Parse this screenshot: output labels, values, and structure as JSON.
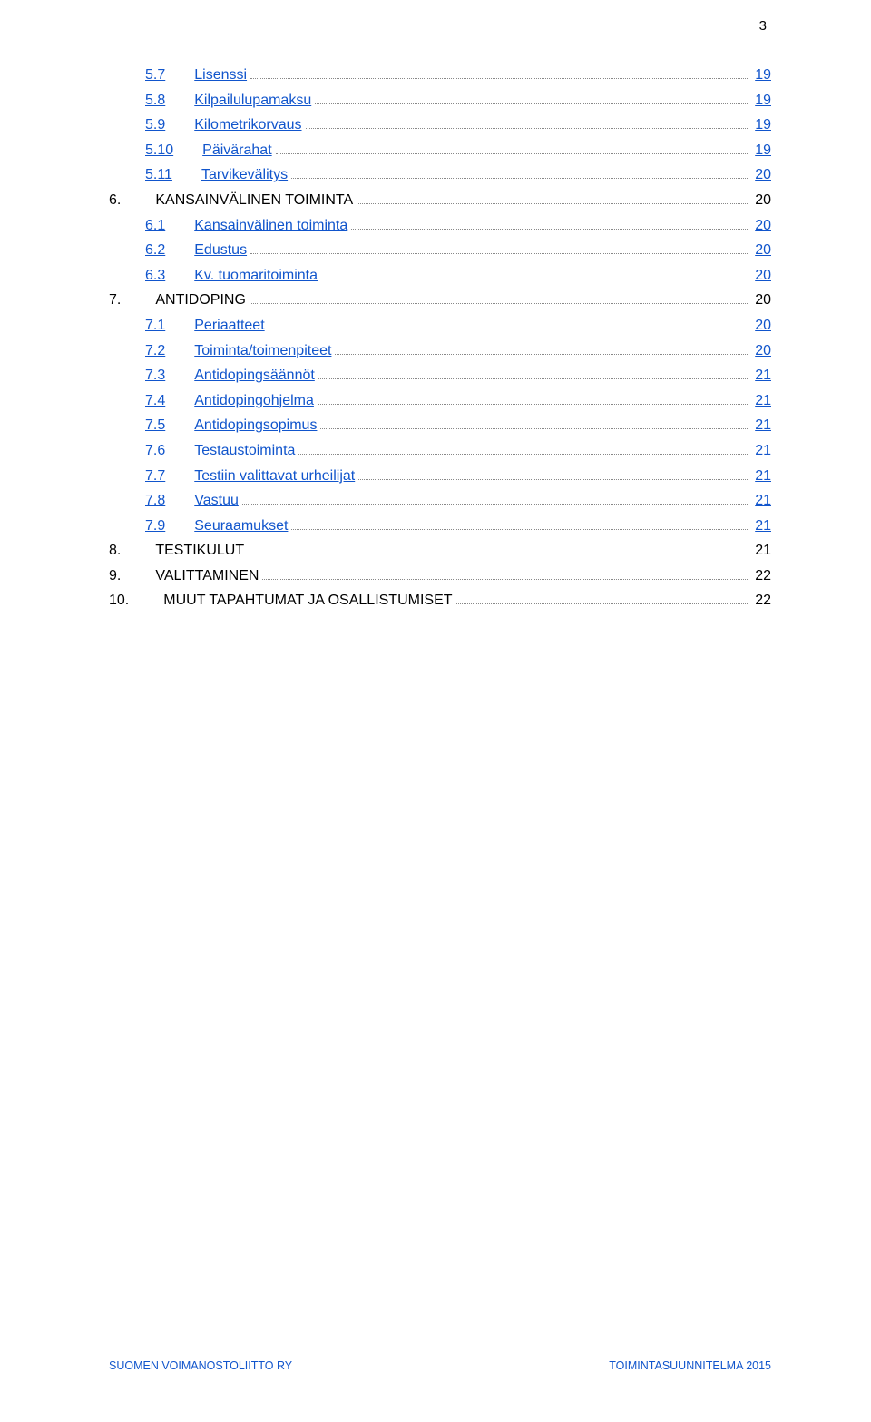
{
  "pageNumber": "3",
  "footer": {
    "left": "SUOMEN VOIMANOSTOLIITTO RY",
    "right": "TOIMINTASUUNNITELMA 2015"
  },
  "toc": [
    {
      "indent": 1,
      "num": "5.7",
      "title": "Lisenssi",
      "page": "19",
      "link": true
    },
    {
      "indent": 1,
      "num": "5.8",
      "title": "Kilpailulupamaksu",
      "page": "19",
      "link": true
    },
    {
      "indent": 1,
      "num": "5.9",
      "title": "Kilometrikorvaus",
      "page": "19",
      "link": true
    },
    {
      "indent": 1,
      "num": "5.10",
      "title": "Päivärahat",
      "page": "19",
      "link": true
    },
    {
      "indent": 1,
      "num": "5.11",
      "title": "Tarvikevälitys",
      "page": "20",
      "link": true
    },
    {
      "indent": 0,
      "num": "6.",
      "title": "KANSAINVÄLINEN TOIMINTA",
      "page": "20",
      "link": false
    },
    {
      "indent": 1,
      "num": "6.1",
      "title": "Kansainvälinen toiminta",
      "page": "20",
      "link": true
    },
    {
      "indent": 1,
      "num": "6.2",
      "title": "Edustus",
      "page": "20",
      "link": true
    },
    {
      "indent": 1,
      "num": "6.3",
      "title": "Kv. tuomaritoiminta",
      "page": "20",
      "link": true
    },
    {
      "indent": 0,
      "num": "7.",
      "title": "ANTIDOPING",
      "page": "20",
      "link": false
    },
    {
      "indent": 1,
      "num": "7.1",
      "title": "Periaatteet",
      "page": "20",
      "link": true
    },
    {
      "indent": 1,
      "num": "7.2",
      "title": "Toiminta/toimenpiteet",
      "page": "20",
      "link": true
    },
    {
      "indent": 1,
      "num": "7.3",
      "title": "Antidopingsäännöt",
      "page": "21",
      "link": true
    },
    {
      "indent": 1,
      "num": "7.4",
      "title": "Antidopingohjelma",
      "page": "21",
      "link": true
    },
    {
      "indent": 1,
      "num": "7.5",
      "title": "Antidopingsopimus",
      "page": "21",
      "link": true
    },
    {
      "indent": 1,
      "num": "7.6",
      "title": "Testaustoiminta",
      "page": "21",
      "link": true
    },
    {
      "indent": 1,
      "num": "7.7",
      "title": "Testiin valittavat urheilijat",
      "page": "21",
      "link": true
    },
    {
      "indent": 1,
      "num": "7.8",
      "title": "Vastuu",
      "page": "21",
      "link": true
    },
    {
      "indent": 1,
      "num": "7.9",
      "title": "Seuraamukset",
      "page": "21",
      "link": true
    },
    {
      "indent": 0,
      "num": "8.",
      "title": "TESTIKULUT",
      "page": "21",
      "link": false
    },
    {
      "indent": 0,
      "num": "9.",
      "title": "VALITTAMINEN",
      "page": "22",
      "link": false
    },
    {
      "indent": 0,
      "num": "10.",
      "title": "MUUT TAPAHTUMAT JA OSALLISTUMISET",
      "page": "22",
      "link": false
    }
  ]
}
